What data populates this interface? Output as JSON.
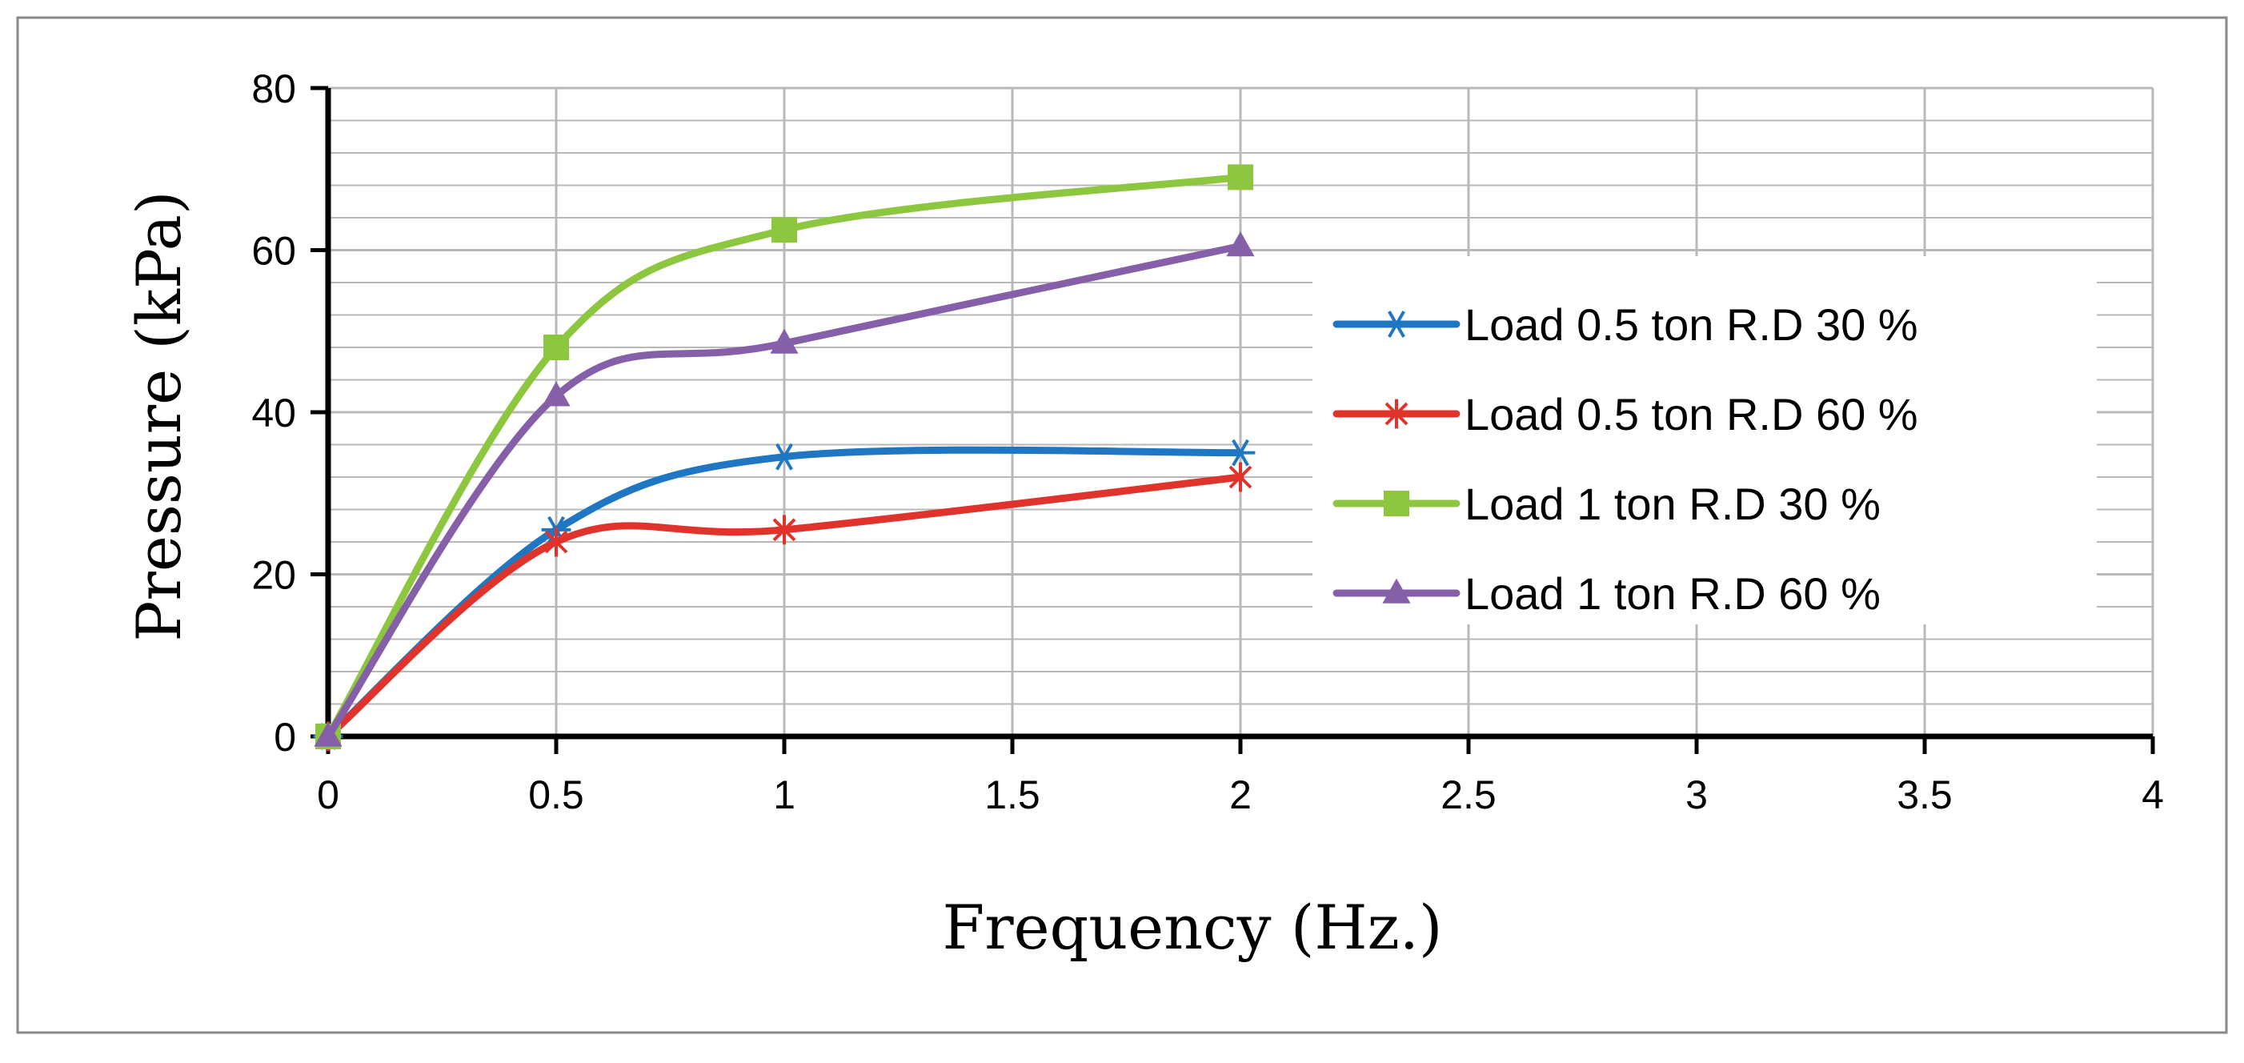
{
  "chart_data": {
    "type": "line",
    "title": "",
    "xlabel": "Frequency (Hz.)",
    "ylabel": "Pressure (kPa)",
    "xlim": [
      0,
      4
    ],
    "ylim": [
      0,
      80
    ],
    "x_ticks": [
      "0",
      "0.5",
      "1",
      "1.5",
      "2",
      "2.5",
      "3",
      "3.5",
      "4"
    ],
    "y_ticks": [
      "0",
      "20",
      "40",
      "60",
      "80"
    ],
    "grid": true,
    "smooth": true,
    "legend_position": "right",
    "series": [
      {
        "name": "Load 0.5 ton R.D 30 %",
        "color": "#1f77c4",
        "marker": "star",
        "points": [
          [
            0,
            0
          ],
          [
            0.5,
            25.5
          ],
          [
            1,
            34.5
          ],
          [
            2,
            35
          ]
        ]
      },
      {
        "name": "Load 0.5 ton R.D 60 %",
        "color": "#e0332b",
        "marker": "asterisk",
        "points": [
          [
            0,
            0
          ],
          [
            0.5,
            24
          ],
          [
            1,
            25.5
          ],
          [
            2,
            32
          ]
        ]
      },
      {
        "name": "Load 1 ton R.D 30 %",
        "color": "#8dc63f",
        "marker": "square",
        "points": [
          [
            0,
            0
          ],
          [
            0.5,
            48
          ],
          [
            1,
            62.5
          ],
          [
            2,
            69
          ]
        ]
      },
      {
        "name": "Load 1 ton R.D 60 %",
        "color": "#8560a8",
        "marker": "triangle",
        "points": [
          [
            0,
            0
          ],
          [
            0.5,
            42
          ],
          [
            1,
            48.5
          ],
          [
            2,
            60.5
          ]
        ]
      }
    ]
  }
}
